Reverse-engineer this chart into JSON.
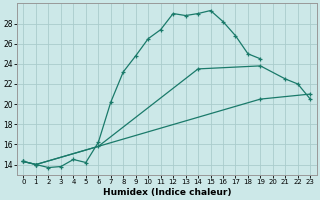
{
  "xlabel": "Humidex (Indice chaleur)",
  "bg_color": "#cce8e8",
  "grid_color": "#aacccc",
  "line_color": "#1a7a6a",
  "xlim": [
    -0.5,
    23.5
  ],
  "ylim": [
    13.0,
    30.0
  ],
  "xticks": [
    0,
    1,
    2,
    3,
    4,
    5,
    6,
    7,
    8,
    9,
    10,
    11,
    12,
    13,
    14,
    15,
    16,
    17,
    18,
    19,
    20,
    21,
    22,
    23
  ],
  "yticks": [
    14,
    16,
    18,
    20,
    22,
    24,
    26,
    28
  ],
  "line1_x": [
    0,
    1,
    2,
    3,
    4,
    5,
    6,
    7,
    8,
    9,
    10,
    11,
    12,
    13,
    14,
    15,
    16,
    17,
    18,
    19
  ],
  "line1_y": [
    14.3,
    14.0,
    13.7,
    13.8,
    14.5,
    14.2,
    16.2,
    20.2,
    23.2,
    24.8,
    26.5,
    27.4,
    29.0,
    28.8,
    29.0,
    29.3,
    28.2,
    26.8,
    25.0,
    24.5
  ],
  "line2_x": [
    0,
    1,
    19,
    23
  ],
  "line2_y": [
    14.3,
    14.0,
    20.5,
    21.0
  ],
  "line3_x": [
    0,
    1,
    6,
    14,
    19,
    21,
    22,
    23
  ],
  "line3_y": [
    14.3,
    14.0,
    15.8,
    23.5,
    23.8,
    22.5,
    22.0,
    20.5
  ]
}
